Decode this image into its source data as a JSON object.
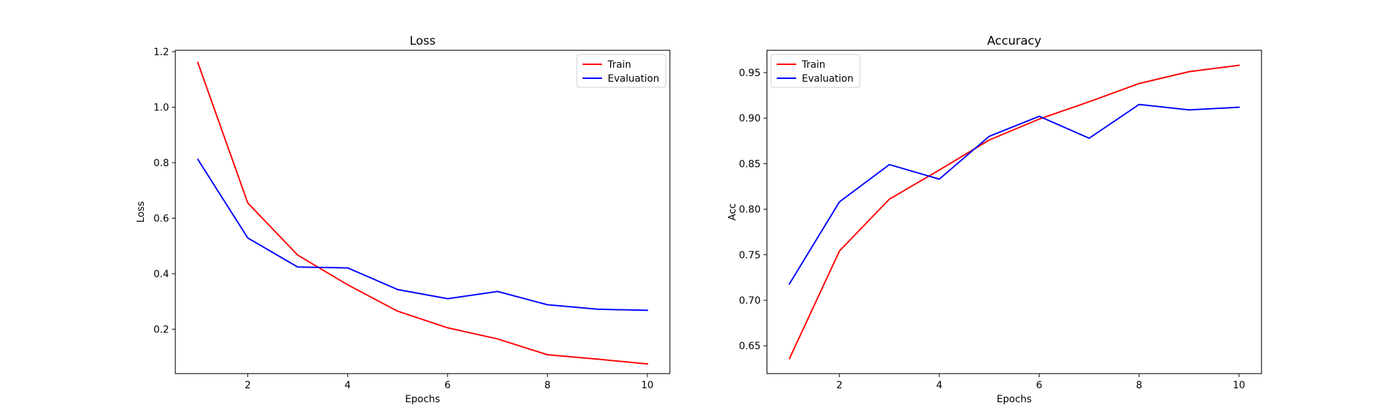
{
  "chart_data": [
    {
      "type": "line",
      "title": "Loss",
      "xlabel": "Epochs",
      "ylabel": "Loss",
      "x": [
        1,
        2,
        3,
        4,
        5,
        6,
        7,
        8,
        9,
        10
      ],
      "xlim": [
        0.55,
        10.45
      ],
      "ylim": [
        0.04,
        1.205
      ],
      "xticks": [
        2,
        4,
        6,
        8,
        10
      ],
      "yticks": [
        0.2,
        0.4,
        0.6,
        0.8,
        1.0,
        1.2
      ],
      "ytick_labels": [
        "0.2",
        "0.4",
        "0.6",
        "0.8",
        "1.0",
        "1.2"
      ],
      "grid": false,
      "legend_position": "upper right",
      "series": [
        {
          "name": "Train",
          "color": "#ff0000",
          "values": [
            1.161,
            0.655,
            0.467,
            0.36,
            0.265,
            0.205,
            0.165,
            0.108,
            0.092,
            0.075
          ]
        },
        {
          "name": "Evaluation",
          "color": "#0000ff",
          "values": [
            0.812,
            0.529,
            0.424,
            0.421,
            0.343,
            0.31,
            0.336,
            0.288,
            0.272,
            0.268
          ]
        }
      ]
    },
    {
      "type": "line",
      "title": "Accuracy",
      "xlabel": "Epochs",
      "ylabel": "Acc",
      "x": [
        1,
        2,
        3,
        4,
        5,
        6,
        7,
        8,
        9,
        10
      ],
      "xlim": [
        0.55,
        10.45
      ],
      "ylim": [
        0.6195,
        0.9745
      ],
      "xticks": [
        2,
        4,
        6,
        8,
        10
      ],
      "yticks": [
        0.65,
        0.7,
        0.75,
        0.8,
        0.85,
        0.9,
        0.95
      ],
      "ytick_labels": [
        "0.65",
        "0.70",
        "0.75",
        "0.80",
        "0.85",
        "0.90",
        "0.95"
      ],
      "grid": false,
      "legend_position": "upper left",
      "series": [
        {
          "name": "Train",
          "color": "#ff0000",
          "values": [
            0.636,
            0.754,
            0.811,
            0.843,
            0.876,
            0.899,
            0.918,
            0.938,
            0.951,
            0.958
          ]
        },
        {
          "name": "Evaluation",
          "color": "#0000ff",
          "values": [
            0.718,
            0.808,
            0.849,
            0.833,
            0.88,
            0.902,
            0.878,
            0.915,
            0.909,
            0.912
          ]
        }
      ]
    }
  ]
}
